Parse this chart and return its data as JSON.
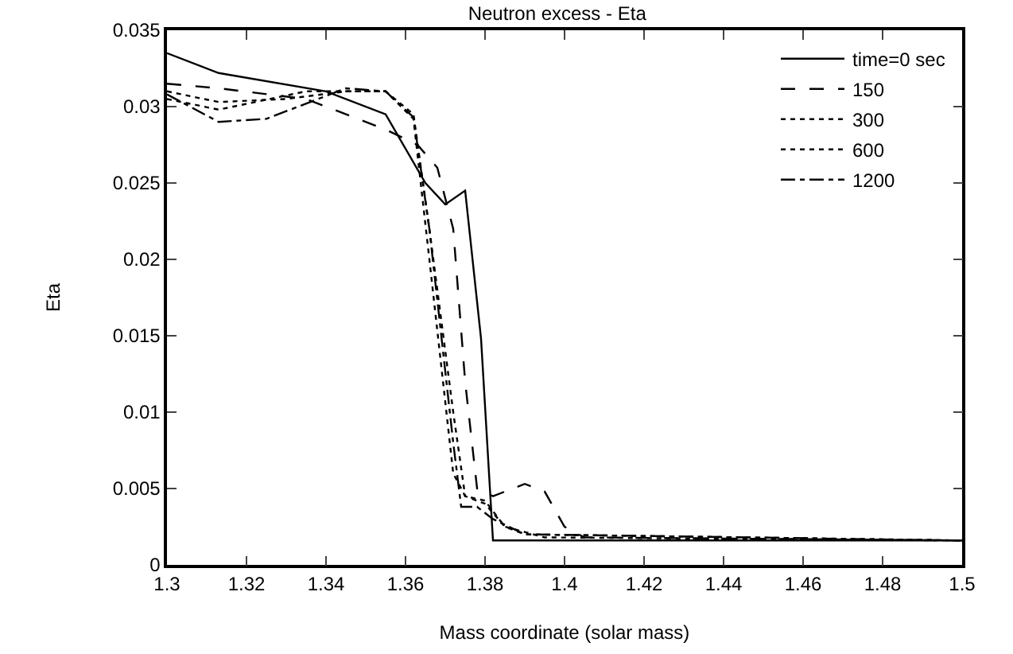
{
  "chart_data": {
    "type": "line",
    "title": "Neutron excess - Eta",
    "xlabel": "Mass coordinate (solar mass)",
    "ylabel": "Eta",
    "xlim": [
      1.3,
      1.5
    ],
    "xticks": [
      1.3,
      1.32,
      1.34,
      1.36,
      1.38,
      1.4,
      1.42,
      1.44,
      1.46,
      1.48,
      1.5
    ],
    "ylim": [
      0,
      0.035
    ],
    "yticks": [
      0,
      0.005,
      0.01,
      0.015,
      0.02,
      0.025,
      0.03,
      0.035
    ],
    "grid": false,
    "legend": "top right",
    "marker": "none",
    "series": [
      {
        "name": "time=0 sec",
        "color": "#000000",
        "line_style": "solid",
        "x": [
          1.3,
          1.313,
          1.34,
          1.355,
          1.365,
          1.37,
          1.375,
          1.379,
          1.382,
          1.4,
          1.5
        ],
        "values": [
          0.0335,
          0.0322,
          0.031,
          0.0295,
          0.025,
          0.0236,
          0.0245,
          0.0148,
          0.0016,
          0.0016,
          0.0016
        ]
      },
      {
        "name": "150",
        "color": "#000000",
        "line_style": "dashed",
        "x": [
          1.3,
          1.313,
          1.335,
          1.355,
          1.363,
          1.368,
          1.372,
          1.375,
          1.378,
          1.382,
          1.39,
          1.395,
          1.4,
          1.405,
          1.5
        ],
        "values": [
          0.0315,
          0.0312,
          0.0305,
          0.0285,
          0.0275,
          0.026,
          0.022,
          0.012,
          0.005,
          0.0045,
          0.0053,
          0.0048,
          0.0025,
          0.0018,
          0.0016
        ]
      },
      {
        "name": "300",
        "color": "#000000",
        "line_style": "dotted",
        "x": [
          1.3,
          1.313,
          1.33,
          1.345,
          1.355,
          1.362,
          1.366,
          1.372,
          1.375,
          1.38,
          1.385,
          1.39,
          1.5
        ],
        "values": [
          0.031,
          0.0303,
          0.0305,
          0.031,
          0.031,
          0.0295,
          0.022,
          0.01,
          0.0045,
          0.004,
          0.0025,
          0.002,
          0.0016
        ]
      },
      {
        "name": "600",
        "color": "#000000",
        "line_style": "dotted",
        "x": [
          1.3,
          1.313,
          1.335,
          1.355,
          1.362,
          1.366,
          1.372,
          1.375,
          1.38,
          1.385,
          1.395,
          1.5
        ],
        "values": [
          0.0305,
          0.0298,
          0.031,
          0.031,
          0.0292,
          0.02,
          0.006,
          0.0045,
          0.0042,
          0.0025,
          0.0018,
          0.0016
        ]
      },
      {
        "name": "1200",
        "color": "#000000",
        "line_style": "dashdot",
        "x": [
          1.3,
          1.313,
          1.325,
          1.345,
          1.355,
          1.362,
          1.366,
          1.372,
          1.374,
          1.378,
          1.382,
          1.39,
          1.5
        ],
        "values": [
          0.0308,
          0.029,
          0.0292,
          0.0312,
          0.031,
          0.0293,
          0.022,
          0.008,
          0.0038,
          0.0038,
          0.003,
          0.002,
          0.0016
        ]
      }
    ]
  }
}
